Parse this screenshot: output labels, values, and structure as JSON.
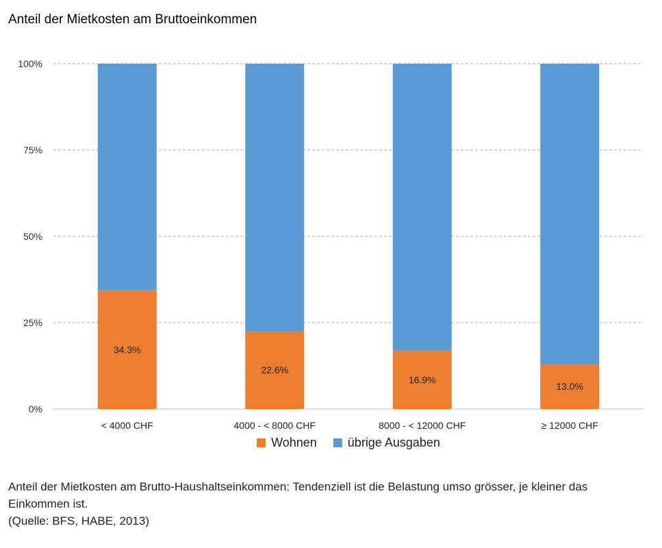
{
  "chart_data": {
    "type": "bar",
    "stacked": true,
    "title": "Anteil der Mietkosten am Bruttoeinkommen",
    "categories": [
      "< 4000 CHF",
      "4000 - < 8000 CHF",
      "8000 - < 12000 CHF",
      "≥ 12000 CHF"
    ],
    "series": [
      {
        "name": "Wohnen",
        "values": [
          34.3,
          22.6,
          16.9,
          13.0
        ],
        "labels": [
          "34.3%",
          "22.6%",
          "16.9%",
          "13.0%"
        ],
        "color": "#ED7D31"
      },
      {
        "name": "übrige Ausgaben",
        "values": [
          65.7,
          77.4,
          83.1,
          87.0
        ],
        "color": "#5B9BD5"
      }
    ],
    "ylim": [
      0,
      100
    ],
    "yticks": [
      "0%",
      "25%",
      "50%",
      "75%",
      "100%"
    ],
    "ytick_values": [
      0,
      25,
      50,
      75,
      100
    ],
    "grid": true,
    "legend_position": "bottom"
  },
  "caption": {
    "line1": "Anteil der Mietkosten am Brutto-Haushaltseinkommen: Tendenziell ist die Belastung umso grösser, je kleiner das Einkommen ist.",
    "line2": "(Quelle: BFS, HABE, 2013)"
  }
}
